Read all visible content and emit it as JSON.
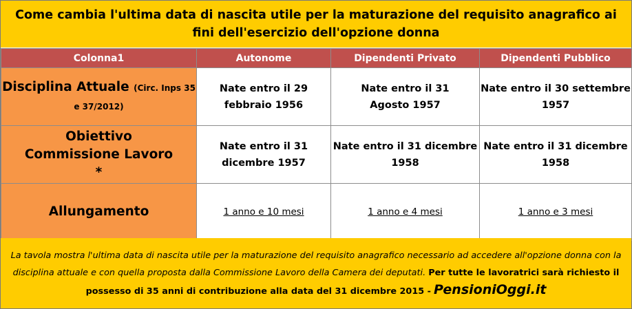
{
  "title": {
    "line1": "Come cambia l'ultima data di nascita utile per la maturazione del requisito anagrafico ai",
    "line2": "fini dell'esercizio dell'opzione donna"
  },
  "table": {
    "headers": [
      "Colonna1",
      "Autonome",
      "Dipendenti Privato",
      "Dipendenti Pubblico"
    ],
    "rows": [
      {
        "label": "Disciplina Attuale",
        "note": "(Circ. Inps 35 e 37/2012)",
        "values": [
          "Nate entro il 29 febbraio 1956",
          "Nate entro il 31 Agosto 1957",
          "Nate entro il 30 settembre 1957"
        ]
      },
      {
        "label": "Obiettivo Commissione Lavoro *",
        "values": [
          "Nate entro il 31 dicembre 1957",
          "Nate entro il 31 dicembre 1958",
          "Nate entro il 31 dicembre 1958"
        ]
      },
      {
        "label": "Allungamento",
        "values": [
          "1 anno e 10 mesi",
          "1 anno e 4 mesi",
          "1 anno e 3 mesi"
        ]
      }
    ]
  },
  "footer": {
    "italic_text": "La tavola mostra l'ultima data di nascita utile per la maturazione del requisito anagrafico necessario ad accedere all'opzione donna con la disciplina attuale e con quella proposta dalla Commissione Lavoro della Camera dei deputati.",
    "bold_text": "Per tutte le lavoratrici sarà richiesto il possesso di 35 anni di contribuzione alla data del 31 dicembre 2015 -",
    "brand": "PensioniOggi.it"
  },
  "colors": {
    "title_bg": "#ffcc00",
    "header_bg": "#c0504d",
    "rowhead_bg": "#f79646",
    "footer_bg": "#ffcc00"
  }
}
